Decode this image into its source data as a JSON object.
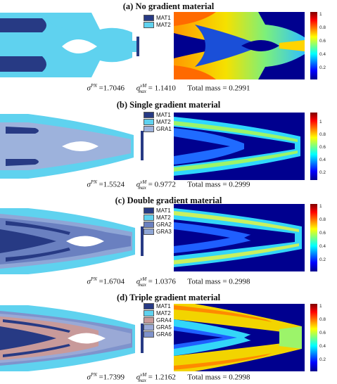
{
  "colorbar_ticks": [
    "1",
    "0.8",
    "0.6",
    "0.4",
    "0.2"
  ],
  "colors": {
    "MAT1": "#273a84",
    "MAT2": "#5fd2ef",
    "GRA1": "#9db2dc",
    "GRA2": "#6a80c0",
    "GRA3": "#8fa6d6",
    "GRA4": "#c89a9a",
    "GRA5": "#9aa9d6",
    "GRA6": "#7f93cc",
    "background": "#ffffff",
    "heat_background": "#00008f"
  },
  "panels": [
    {
      "title": "(a) No gradient material",
      "legend": [
        "MAT1",
        "MAT2"
      ],
      "sigma_pn_label": "σ",
      "sigma_pn_sup": "PN",
      "sigma_pn_value": "=1.7046",
      "sigma_vm_sup": "vM",
      "sigma_vm_sub": "max",
      "sigma_vm_value": "= 1.1410",
      "mass_text": "Total mass = 0.2991"
    },
    {
      "title": "(b) Single gradient material",
      "legend": [
        "MAT1",
        "MAT2",
        "GRA1"
      ],
      "sigma_pn_label": "σ",
      "sigma_pn_sup": "PN",
      "sigma_pn_value": "=1.5524",
      "sigma_vm_sup": "vM",
      "sigma_vm_sub": "max",
      "sigma_vm_value": "= 0.9772",
      "mass_text": "Total mass = 0.2999"
    },
    {
      "title": "(c) Double gradient material",
      "legend": [
        "MAT1",
        "MAT2",
        "GRA2",
        "GRA3"
      ],
      "sigma_pn_label": "σ",
      "sigma_pn_sup": "PN",
      "sigma_pn_value": "=1.6704",
      "sigma_vm_sup": "vM",
      "sigma_vm_sub": "max",
      "sigma_vm_value": "= 1.0376",
      "mass_text": "Total mass = 0.2998"
    },
    {
      "title": "(d) Triple gradient material",
      "legend": [
        "MAT1",
        "MAT2",
        "GRA4",
        "GRA5",
        "GRA6"
      ],
      "sigma_pn_label": "σ",
      "sigma_pn_sup": "PN",
      "sigma_pn_value": "=1.7399",
      "sigma_vm_sup": "vM",
      "sigma_vm_sub": "max",
      "sigma_vm_value": "= 1.2162",
      "mass_text": "Total mass = 0.2998"
    }
  ]
}
